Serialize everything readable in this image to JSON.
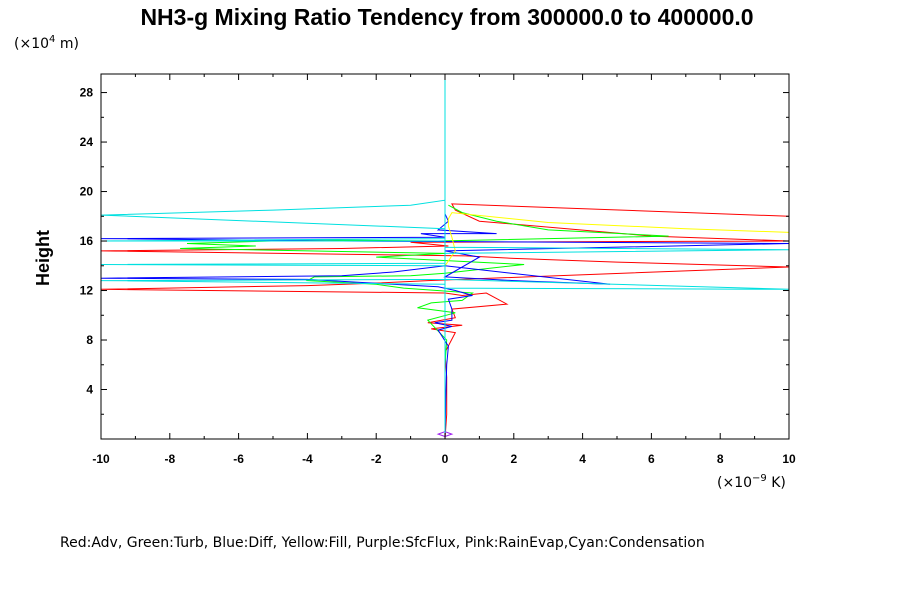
{
  "chart_data": {
    "type": "line",
    "title": "NH3-g Mixing Ratio Tendency from 300000.0 to 400000.0",
    "ylabel": "Height",
    "y_unit": "(×10",
    "y_unit_exp": "4",
    "y_unit_suffix": " m)",
    "x_unit": "(×10",
    "x_unit_exp": "−9",
    "x_unit_suffix": " K)",
    "xlim": [
      -10,
      10
    ],
    "ylim": [
      0,
      29.5
    ],
    "x_ticks": [
      -10,
      -8,
      -6,
      -4,
      -2,
      0,
      2,
      4,
      6,
      8,
      10
    ],
    "y_ticks": [
      4,
      8,
      12,
      16,
      20,
      24,
      28
    ],
    "legend_text": "Red:Adv, Green:Turb, Blue:Diff, Yellow:Fill, Purple:SfcFlux, Pink:RainEvap,Cyan:Condensation",
    "legend_position": "bottom",
    "series": [
      {
        "name": "Adv",
        "color": "#ff0000",
        "points": [
          [
            0,
            0
          ],
          [
            0.05,
            2
          ],
          [
            0.05,
            5
          ],
          [
            0,
            7
          ],
          [
            0.3,
            8.6
          ],
          [
            -0.4,
            8.9
          ],
          [
            0.5,
            9.2
          ],
          [
            -0.5,
            9.4
          ],
          [
            0.3,
            9.8
          ],
          [
            0.2,
            10.5
          ],
          [
            1.8,
            10.9
          ],
          [
            1.2,
            11.8
          ],
          [
            0.5,
            11.6
          ],
          [
            0,
            11.8
          ],
          [
            -10,
            12.1
          ],
          [
            -4,
            12.4
          ],
          [
            -2,
            12.6
          ],
          [
            -0.5,
            12.8
          ],
          [
            10,
            13.9
          ],
          [
            5,
            14.3
          ],
          [
            2,
            14.6
          ],
          [
            0.6,
            14.8
          ],
          [
            -10,
            15.2
          ],
          [
            -3,
            15.4
          ],
          [
            0.1,
            15.6
          ],
          [
            -1,
            15.9
          ],
          [
            10,
            16.0
          ],
          [
            6,
            16.4
          ],
          [
            1,
            17.6
          ],
          [
            0.3,
            18.5
          ],
          [
            0.2,
            19.0
          ],
          [
            10,
            18.0
          ]
        ]
      },
      {
        "name": "Turb",
        "color": "#00ff00",
        "points": [
          [
            0,
            0
          ],
          [
            0,
            6
          ],
          [
            0.05,
            8
          ],
          [
            -0.5,
            9.6
          ],
          [
            0.3,
            10.2
          ],
          [
            -0.8,
            10.6
          ],
          [
            -0.4,
            11.0
          ],
          [
            0.5,
            11.2
          ],
          [
            0.8,
            11.8
          ],
          [
            -1.2,
            12.2
          ],
          [
            -2,
            12.5
          ],
          [
            -4,
            12.8
          ],
          [
            -3.8,
            13.1
          ],
          [
            -1,
            13.2
          ],
          [
            0,
            13.4
          ],
          [
            2.3,
            14.1
          ],
          [
            -2,
            14.7
          ],
          [
            0,
            15.0
          ],
          [
            -7.7,
            15.4
          ],
          [
            -5.5,
            15.6
          ],
          [
            -7.5,
            15.8
          ],
          [
            -3.8,
            16.1
          ],
          [
            -0.2,
            16.0
          ],
          [
            6.5,
            16.4
          ],
          [
            3,
            16.9
          ],
          [
            1.5,
            17.6
          ],
          [
            0.5,
            18.3
          ],
          [
            0.1,
            18.9
          ]
        ]
      },
      {
        "name": "Diff",
        "color": "#0000ff",
        "points": [
          [
            0,
            0
          ],
          [
            0.02,
            3
          ],
          [
            0.05,
            6
          ],
          [
            0.1,
            7.5
          ],
          [
            -0.2,
            8.8
          ],
          [
            0.2,
            9.1
          ],
          [
            -0.3,
            9.4
          ],
          [
            0.2,
            9.6
          ],
          [
            0.2,
            10.5
          ],
          [
            0.1,
            11.3
          ],
          [
            0.8,
            11.6
          ],
          [
            0.3,
            12.0
          ],
          [
            -0.2,
            12.3
          ],
          [
            -4,
            12.9
          ],
          [
            -10,
            13.0
          ],
          [
            -3,
            13.2
          ],
          [
            -1.5,
            13.5
          ],
          [
            0,
            14.0
          ],
          [
            4.8,
            12.5
          ],
          [
            2,
            12.8
          ],
          [
            0,
            13.1
          ],
          [
            1,
            14.7
          ],
          [
            0,
            15.2
          ],
          [
            10,
            15.8
          ],
          [
            -3,
            16.0
          ],
          [
            -10,
            16.2
          ],
          [
            0,
            16.3
          ],
          [
            -0.7,
            16.6
          ],
          [
            1.5,
            16.6
          ],
          [
            -0.2,
            16.9
          ],
          [
            0.1,
            17.6
          ],
          [
            0,
            18.2
          ]
        ]
      },
      {
        "name": "Fill",
        "color": "#ffff00",
        "points": [
          [
            0,
            0
          ],
          [
            0,
            10
          ],
          [
            0,
            14
          ],
          [
            0.3,
            15.2
          ],
          [
            0.2,
            16.3
          ],
          [
            0.1,
            17.2
          ],
          [
            0.1,
            17.8
          ],
          [
            0.2,
            18.3
          ],
          [
            3,
            17.5
          ],
          [
            7,
            17.0
          ],
          [
            10,
            16.7
          ]
        ]
      },
      {
        "name": "SfcFlux",
        "color": "#a020f0",
        "points": [
          [
            0,
            0.2
          ],
          [
            -0.2,
            0.4
          ],
          [
            0,
            0.6
          ],
          [
            0.2,
            0.4
          ],
          [
            0,
            0.2
          ]
        ]
      },
      {
        "name": "RainEvap",
        "color": "#ff69b4",
        "points": []
      },
      {
        "name": "Condensation",
        "color": "#00e0e0",
        "points": [
          [
            0,
            0
          ],
          [
            0,
            12
          ],
          [
            0,
            14
          ],
          [
            -10,
            14.1
          ],
          [
            0,
            14.2
          ],
          [
            0,
            15
          ],
          [
            10,
            15.3
          ],
          [
            0,
            15.5
          ],
          [
            0,
            16
          ],
          [
            -10,
            16.0
          ],
          [
            0,
            16.2
          ],
          [
            0,
            17
          ],
          [
            -10,
            18.1
          ],
          [
            -5,
            18.5
          ],
          [
            -1,
            18.9
          ],
          [
            0,
            19.3
          ],
          [
            0,
            29.5
          ],
          [
            0,
            12.5
          ],
          [
            -10,
            12.8
          ],
          [
            0,
            12.9
          ],
          [
            10,
            12.1
          ],
          [
            0,
            12.2
          ]
        ]
      }
    ]
  }
}
